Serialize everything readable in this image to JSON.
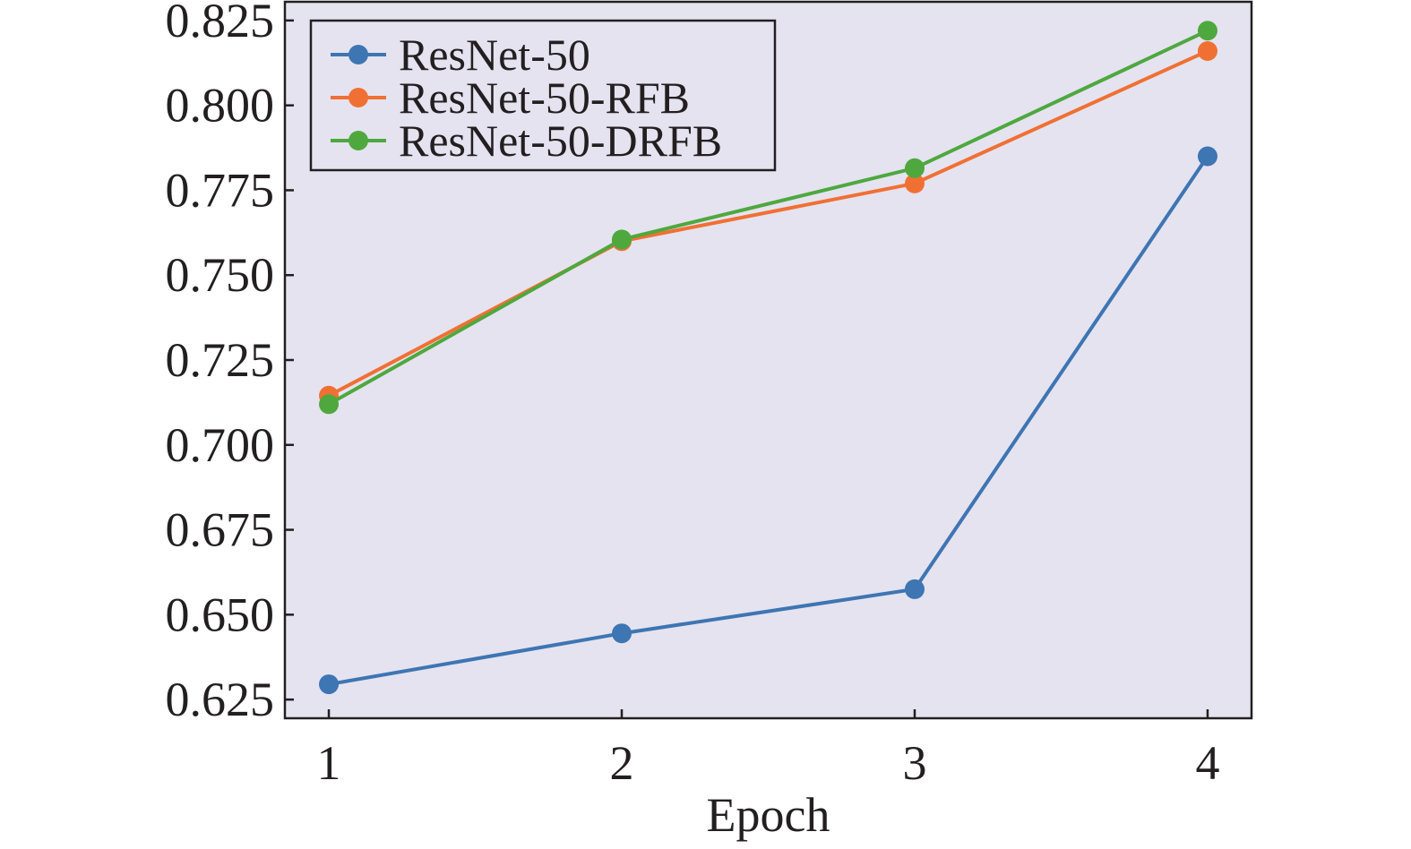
{
  "chart_data": {
    "type": "line",
    "title": "",
    "xlabel": "Epoch",
    "ylabel": "",
    "x": [
      1,
      2,
      3,
      4
    ],
    "x_tick_labels": [
      "1",
      "2",
      "3",
      "4"
    ],
    "y_tick_labels": [
      "0.625",
      "0.650",
      "0.675",
      "0.700",
      "0.725",
      "0.750",
      "0.775",
      "0.800",
      "0.825"
    ],
    "y_ticks": [
      0.625,
      0.65,
      0.675,
      0.7,
      0.725,
      0.75,
      0.775,
      0.8,
      0.825
    ],
    "ylim": [
      0.6195,
      0.8305
    ],
    "xlim": [
      0.85,
      4.15
    ],
    "grid": false,
    "legend_position": "top-left",
    "background": "#e5e3f0",
    "series": [
      {
        "name": "ResNet-50",
        "color": "#3e75b3",
        "values": [
          0.6295,
          0.6445,
          0.6575,
          0.785
        ]
      },
      {
        "name": "ResNet-50-RFB",
        "color": "#f07033",
        "values": [
          0.7145,
          0.76,
          0.777,
          0.816
        ]
      },
      {
        "name": "ResNet-50-DRFB",
        "color": "#4ea83e",
        "values": [
          0.712,
          0.7605,
          0.7815,
          0.822
        ]
      }
    ]
  }
}
